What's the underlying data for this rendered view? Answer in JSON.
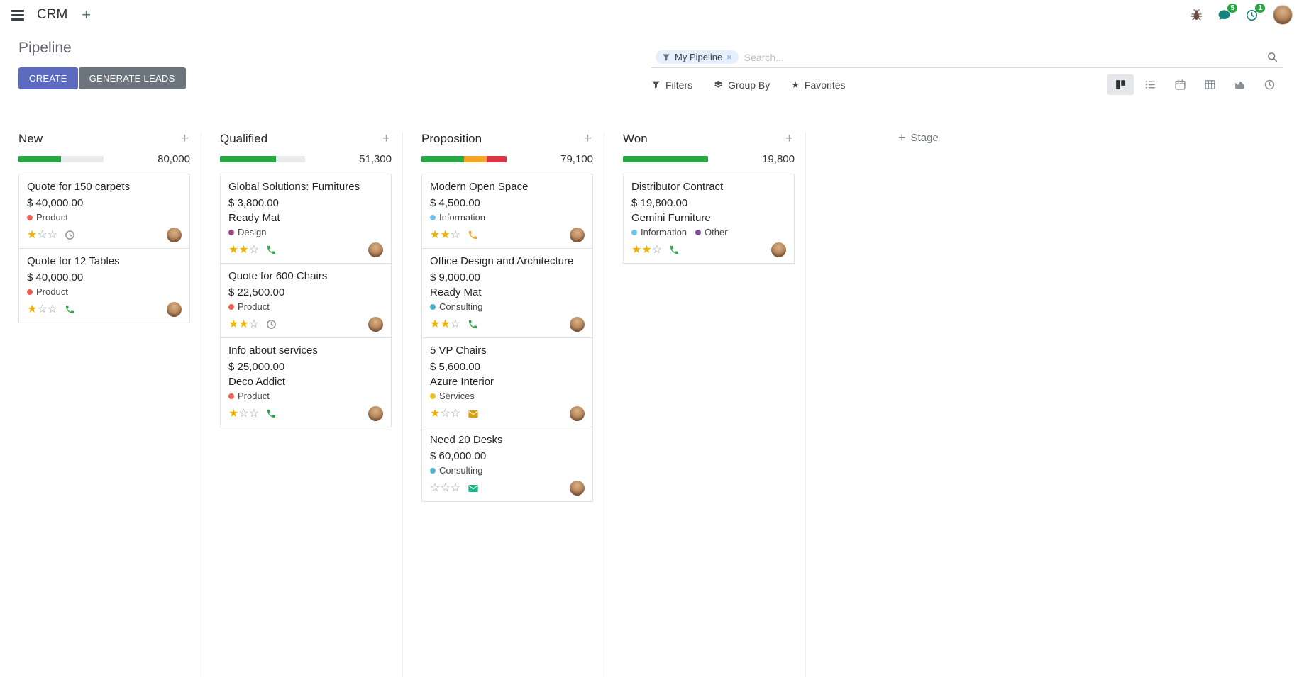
{
  "navbar": {
    "app_name": "CRM",
    "messages_badge": "5",
    "activities_badge": "1"
  },
  "icons": {
    "plus": "+",
    "remove": "×",
    "star_filled": "★",
    "star_empty": "☆"
  },
  "colors": {
    "primary": "#5c6bc0",
    "secondary": "#6c757d",
    "success": "#28a745",
    "warning": "#f5a623",
    "danger": "#dc3545",
    "badge": "#28a745"
  },
  "control_panel": {
    "title": "Pipeline",
    "buttons": {
      "create": "CREATE",
      "generate_leads": "GENERATE LEADS"
    },
    "search": {
      "facet_label": "My Pipeline",
      "placeholder": "Search..."
    },
    "filter_menus": {
      "filters": "Filters",
      "group_by": "Group By",
      "favorites": "Favorites"
    }
  },
  "board": {
    "add_stage_label": "Stage",
    "columns": [
      {
        "name": "New",
        "total": "80,000",
        "progress": [
          {
            "status": "success",
            "color": "#28a745",
            "pct": 50
          }
        ],
        "cards": [
          {
            "title": "Quote for 150 carpets",
            "amount": "$ 40,000.00",
            "partner": "",
            "tags": [
              {
                "label": "Product",
                "color": "#f06050"
              }
            ],
            "stars": 1,
            "activity": {
              "icon": "clock-icon",
              "color": "#8a9097"
            }
          },
          {
            "title": "Quote for 12 Tables",
            "amount": "$ 40,000.00",
            "partner": "",
            "tags": [
              {
                "label": "Product",
                "color": "#f06050"
              }
            ],
            "stars": 1,
            "activity": {
              "icon": "phone-icon",
              "color": "#28a745"
            }
          }
        ]
      },
      {
        "name": "Qualified",
        "total": "51,300",
        "progress": [
          {
            "status": "success",
            "color": "#28a745",
            "pct": 66
          }
        ],
        "cards": [
          {
            "title": "Global Solutions: Furnitures",
            "amount": "$ 3,800.00",
            "partner": "Ready Mat",
            "tags": [
              {
                "label": "Design",
                "color": "#a24689"
              }
            ],
            "stars": 2,
            "activity": {
              "icon": "phone-icon",
              "color": "#28a745"
            }
          },
          {
            "title": "Quote for 600 Chairs",
            "amount": "$ 22,500.00",
            "partner": "",
            "tags": [
              {
                "label": "Product",
                "color": "#f06050"
              }
            ],
            "stars": 2,
            "activity": {
              "icon": "clock-icon",
              "color": "#8a9097"
            }
          },
          {
            "title": "Info about services",
            "amount": "$ 25,000.00",
            "partner": "Deco Addict",
            "tags": [
              {
                "label": "Product",
                "color": "#f06050"
              }
            ],
            "stars": 1,
            "activity": {
              "icon": "phone-icon",
              "color": "#28a745"
            }
          }
        ]
      },
      {
        "name": "Proposition",
        "total": "79,100",
        "progress": [
          {
            "status": "success",
            "color": "#28a745",
            "pct": 50
          },
          {
            "status": "warning",
            "color": "#f5a623",
            "pct": 27
          },
          {
            "status": "danger",
            "color": "#dc3545",
            "pct": 23
          }
        ],
        "cards": [
          {
            "title": "Modern Open Space",
            "amount": "$ 4,500.00",
            "partner": "",
            "tags": [
              {
                "label": "Information",
                "color": "#6cc1ed"
              }
            ],
            "stars": 2,
            "activity": {
              "icon": "phone-icon",
              "color": "#f5a623"
            }
          },
          {
            "title": "Office Design and Architecture",
            "amount": "$ 9,000.00",
            "partner": "Ready Mat",
            "tags": [
              {
                "label": "Consulting",
                "color": "#4db3c8"
              }
            ],
            "stars": 2,
            "activity": {
              "icon": "phone-icon",
              "color": "#28a745"
            }
          },
          {
            "title": "5 VP Chairs",
            "amount": "$ 5,600.00",
            "partner": "Azure Interior",
            "tags": [
              {
                "label": "Services",
                "color": "#ecbe23"
              }
            ],
            "stars": 1,
            "activity": {
              "icon": "envelope-icon",
              "color": "#d99e0b"
            }
          },
          {
            "title": "Need 20 Desks",
            "amount": "$ 60,000.00",
            "partner": "",
            "tags": [
              {
                "label": "Consulting",
                "color": "#4db3c8"
              }
            ],
            "stars": 0,
            "activity": {
              "icon": "envelope-icon",
              "color": "#1fb487"
            }
          }
        ]
      },
      {
        "name": "Won",
        "total": "19,800",
        "progress": [
          {
            "status": "success",
            "color": "#28a745",
            "pct": 100
          }
        ],
        "cards": [
          {
            "title": "Distributor Contract",
            "amount": "$ 19,800.00",
            "partner": "Gemini Furniture",
            "tags": [
              {
                "label": "Information",
                "color": "#6cc1ed"
              },
              {
                "label": "Other",
                "color": "#7c5295"
              }
            ],
            "stars": 2,
            "activity": {
              "icon": "phone-icon",
              "color": "#28a745"
            }
          }
        ]
      }
    ]
  }
}
